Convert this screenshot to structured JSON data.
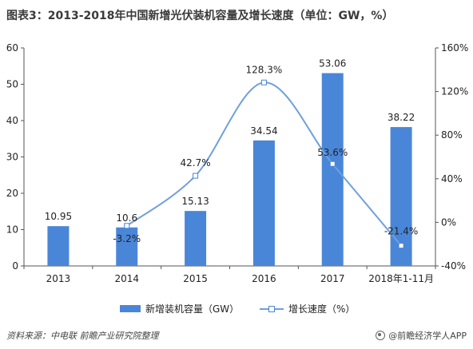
{
  "title": "图表3：2013-2018年中国新增光伏装机容量及增长速度（单位：GW，%）",
  "source": "资料来源：中电联  前瞻产业研究院整理",
  "brand": "@前瞻经济学人APP",
  "colors": {
    "bar": "#4a86d8",
    "line": "#6fa0dc",
    "marker_border": "#4a86d8"
  },
  "chart_data": {
    "type": "bar",
    "categories": [
      "2013",
      "2014",
      "2015",
      "2016",
      "2017",
      "2018年1-11月"
    ],
    "series": [
      {
        "name": "新增装机容量（GW）",
        "type": "bar",
        "axis": "left",
        "values": [
          10.95,
          10.6,
          15.13,
          34.54,
          53.06,
          38.22
        ],
        "labels": [
          "10.95",
          "10.6",
          "15.13",
          "34.54",
          "53.06",
          "38.22"
        ]
      },
      {
        "name": "增长速度（%）",
        "type": "line",
        "axis": "right",
        "values": [
          null,
          -3.2,
          42.7,
          128.3,
          53.6,
          -21.4
        ],
        "labels": [
          "",
          "-3.2%",
          "42.7%",
          "128.3%",
          "53.6%",
          "-21.4%"
        ]
      }
    ],
    "y_left": {
      "min": 0,
      "max": 60,
      "ticks": [
        "0",
        "10",
        "20",
        "30",
        "40",
        "50",
        "60"
      ]
    },
    "y_right": {
      "min": -40,
      "max": 160,
      "ticks": [
        "-40%",
        "0%",
        "40%",
        "80%",
        "120%",
        "160%"
      ]
    },
    "grid": false,
    "legend_position": "bottom"
  }
}
